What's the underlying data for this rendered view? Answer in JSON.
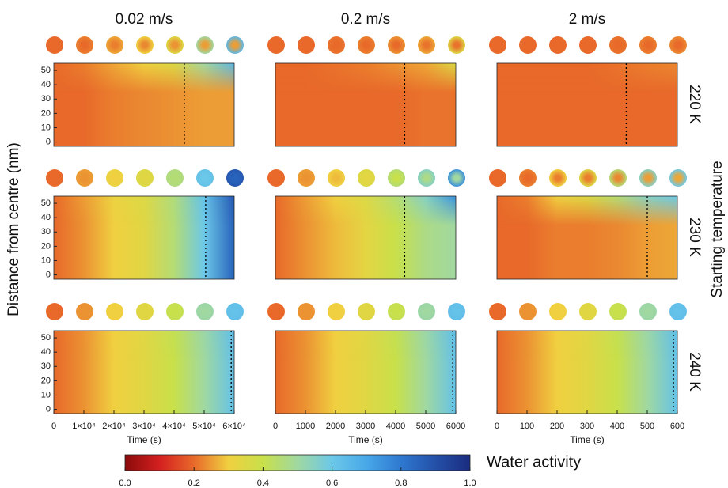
{
  "column_titles": [
    "0.02 m/s",
    "0.2 m/s",
    "2 m/s"
  ],
  "row_labels": [
    "220 K",
    "230 K",
    "240 K"
  ],
  "y_label": "Distance from centre (nm)",
  "right_label": "Starting temperature",
  "colorbar": {
    "label": "Water activity",
    "lim": [
      0,
      1
    ],
    "ticks": [
      {
        "value": 0,
        "label": "0.0"
      },
      0.2,
      0.4,
      0.6,
      0.8,
      {
        "value": 1,
        "label": "1.0"
      }
    ],
    "colormap": [
      "#8a0a0a",
      "#d42020",
      "#e8692a",
      "#f0d040",
      "#c8e04a",
      "#a0d8a0",
      "#6cc8e8",
      "#48a8e8",
      "#2e78d0",
      "#2450a8",
      "#1a2c80"
    ]
  },
  "chart_data": [
    {
      "type": "heatmap",
      "xlim": [
        0,
        60000
      ],
      "ylim": [
        -3,
        55
      ],
      "yticks": [
        0,
        10,
        20,
        30,
        40,
        50
      ],
      "values": [
        0.2,
        0.2,
        0.22,
        0.23,
        0.24,
        0.25,
        0.25
      ],
      "edge_values": [
        0.2,
        0.22,
        0.26,
        0.3,
        0.35,
        0.5,
        0.65
      ],
      "marker_x": 43400
    },
    {
      "type": "heatmap",
      "xlim": [
        0,
        6000
      ],
      "ylim": [
        -3,
        55
      ],
      "values": [
        0.2,
        0.2,
        0.2,
        0.2,
        0.2,
        0.21,
        0.21
      ],
      "edge_values": [
        0.2,
        0.2,
        0.21,
        0.22,
        0.24,
        0.26,
        0.35
      ],
      "marker_x": 4300
    },
    {
      "type": "heatmap",
      "xlim": [
        0,
        600
      ],
      "ylim": [
        -3,
        55
      ],
      "values": [
        0.2,
        0.2,
        0.2,
        0.2,
        0.2,
        0.2,
        0.2
      ],
      "edge_values": [
        0.2,
        0.2,
        0.2,
        0.2,
        0.21,
        0.22,
        0.23
      ],
      "marker_x": 430
    },
    {
      "type": "heatmap",
      "xlim": [
        0,
        60000
      ],
      "ylim": [
        -3,
        55
      ],
      "yticks": [
        0,
        10,
        20,
        30,
        40,
        50
      ],
      "values": [
        0.2,
        0.24,
        0.3,
        0.34,
        0.45,
        0.6,
        0.85
      ],
      "edge_values": [
        0.2,
        0.25,
        0.31,
        0.35,
        0.46,
        0.62,
        0.88
      ],
      "marker_x": 50500
    },
    {
      "type": "heatmap",
      "xlim": [
        0,
        6000
      ],
      "ylim": [
        -3,
        55
      ],
      "values": [
        0.2,
        0.24,
        0.28,
        0.33,
        0.4,
        0.47,
        0.5
      ],
      "edge_values": [
        0.2,
        0.25,
        0.3,
        0.35,
        0.45,
        0.55,
        0.75
      ],
      "marker_x": 4300
    },
    {
      "type": "heatmap",
      "xlim": [
        0,
        600
      ],
      "ylim": [
        -3,
        55
      ],
      "values": [
        0.2,
        0.2,
        0.22,
        0.22,
        0.23,
        0.25,
        0.26
      ],
      "edge_values": [
        0.2,
        0.22,
        0.3,
        0.35,
        0.45,
        0.55,
        0.6
      ],
      "marker_x": 500
    },
    {
      "type": "heatmap",
      "xlim": [
        0,
        60000
      ],
      "ylim": [
        -3,
        55
      ],
      "yticks": [
        0,
        10,
        20,
        30,
        40,
        50
      ],
      "xticks": [
        0,
        {
          "value": 10000,
          "label": "1×10⁴"
        },
        {
          "value": 20000,
          "label": "2×10⁴"
        },
        {
          "value": 30000,
          "label": "3×10⁴"
        },
        {
          "value": 40000,
          "label": "4×10⁴"
        },
        {
          "value": 50000,
          "label": "5×10⁴"
        },
        {
          "value": 60000,
          "label": "6×10⁴"
        }
      ],
      "x_label": "Time (s)",
      "values": [
        0.2,
        0.24,
        0.3,
        0.34,
        0.4,
        0.5,
        0.62
      ],
      "edge_values": [
        0.2,
        0.24,
        0.3,
        0.34,
        0.41,
        0.51,
        0.63
      ],
      "marker_x": 59000
    },
    {
      "type": "heatmap",
      "xlim": [
        0,
        6000
      ],
      "ylim": [
        -3,
        55
      ],
      "xticks": [
        0,
        1000,
        2000,
        3000,
        4000,
        5000,
        6000
      ],
      "x_label": "Time (s)",
      "values": [
        0.2,
        0.24,
        0.3,
        0.34,
        0.4,
        0.5,
        0.62
      ],
      "edge_values": [
        0.2,
        0.24,
        0.3,
        0.34,
        0.41,
        0.51,
        0.63
      ],
      "marker_x": 5900
    },
    {
      "type": "heatmap",
      "xlim": [
        0,
        600
      ],
      "ylim": [
        -3,
        55
      ],
      "xticks": [
        0,
        100,
        200,
        300,
        400,
        500,
        600
      ],
      "x_label": "Time (s)",
      "values": [
        0.2,
        0.24,
        0.3,
        0.34,
        0.4,
        0.5,
        0.62
      ],
      "edge_values": [
        0.2,
        0.24,
        0.3,
        0.34,
        0.41,
        0.51,
        0.63
      ],
      "marker_x": 587
    }
  ]
}
